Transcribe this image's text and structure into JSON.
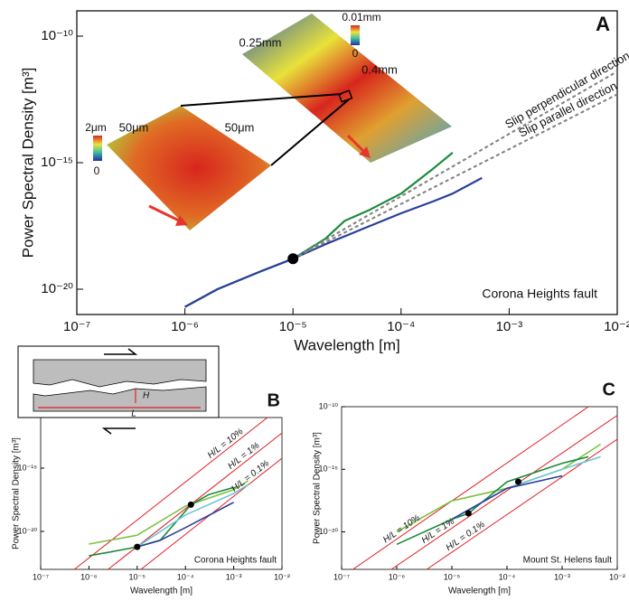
{
  "chart_data": [
    {
      "type": "line",
      "panel_label": "A",
      "log_scale": true,
      "xlabel": "Wavelength [m]",
      "ylabel": "Power Spectral Density [m³]",
      "xlim": [
        1e-07,
        0.01
      ],
      "ylim": [
        1e-21,
        1e-09
      ],
      "xticks": [
        {
          "value": 1e-07,
          "label": "10⁻⁷"
        },
        {
          "value": 1e-06,
          "label": "10⁻⁶"
        },
        {
          "value": 1e-05,
          "label": "10⁻⁵"
        },
        {
          "value": 0.0001,
          "label": "10⁻⁴"
        },
        {
          "value": 0.001,
          "label": "10⁻³"
        },
        {
          "value": 0.01,
          "label": "10⁻²"
        }
      ],
      "yticks": [
        {
          "value": 1e-10,
          "label": "10⁻¹⁰"
        },
        {
          "value": 1e-15,
          "label": "10⁻¹⁵"
        },
        {
          "value": 1e-20,
          "label": "10⁻²⁰"
        }
      ],
      "annotation": "Corona Heights fault",
      "inset_labels": [
        "0.01mm",
        "0",
        "0.25mm",
        "0.4mm",
        "2μm",
        "0",
        "50μm",
        "50μm"
      ],
      "series": [
        {
          "color": "#1b8a3c",
          "x": [
            1e-06,
            2e-06,
            5e-06,
            1e-05,
            2e-05,
            3e-05,
            5e-05,
            0.0001,
            0.0002,
            0.0003
          ],
          "values": [
            2e-21,
            1e-20,
            5e-20,
            1.6e-19,
            1e-18,
            5e-18,
            1.3e-17,
            6e-17,
            6e-16,
            2.5e-15
          ]
        },
        {
          "color": "#2b3f9b",
          "x": [
            1e-06,
            2e-06,
            5e-06,
            1e-05,
            2e-05,
            5e-05,
            0.0001,
            0.0002,
            0.0003,
            0.00056
          ],
          "values": [
            2e-21,
            1e-20,
            5e-20,
            1.6e-19,
            6e-19,
            3e-18,
            1e-17,
            3e-17,
            6e-17,
            2.5e-16
          ]
        },
        {
          "name": "Slip perpendicular direction",
          "color": "#808080",
          "dashed": true,
          "x": [
            1e-05,
            0.01
          ],
          "values": [
            1.6e-19,
            4e-12
          ]
        },
        {
          "name": "Slip parallel direction",
          "color": "#808080",
          "dashed": true,
          "x": [
            1e-05,
            0.01
          ],
          "values": [
            1.6e-19,
            5e-13
          ]
        }
      ],
      "points": {
        "x": [
          1e-05
        ],
        "y": [
          1.6e-19
        ],
        "color": "#000000"
      }
    },
    {
      "type": "line",
      "panel_label": "B",
      "log_scale": true,
      "xlabel": "Wavelength [m]",
      "ylabel": "Power Spectral Density [m³]",
      "xlim": [
        1e-07,
        0.01
      ],
      "ylim": [
        1e-23,
        1e-11
      ],
      "xticks": [
        {
          "value": 1e-07,
          "label": "10⁻⁷"
        },
        {
          "value": 1e-06,
          "label": "10⁻⁶"
        },
        {
          "value": 1e-05,
          "label": "10⁻⁵"
        },
        {
          "value": 0.0001,
          "label": "10⁻⁴"
        },
        {
          "value": 0.001,
          "label": "10⁻³"
        },
        {
          "value": 0.01,
          "label": "10⁻²"
        }
      ],
      "yticks": [
        {
          "value": 1e-15,
          "label": "10⁻¹⁵"
        },
        {
          "value": 1e-20,
          "label": "10⁻²⁰"
        }
      ],
      "annotation": "Corona Heights fault",
      "schematic_labels": [
        "H",
        "L"
      ],
      "series": [
        {
          "name": "H/L = 10%",
          "color": "#e31e24",
          "x": [
            5e-07,
            0.005
          ],
          "values": [
            1e-23,
            1e-11
          ]
        },
        {
          "name": "H/L = 1%",
          "color": "#e31e24",
          "x": [
            2.5e-06,
            0.01
          ],
          "values": [
            1e-23,
            6e-13
          ]
        },
        {
          "name": "H/L = 0.1%",
          "color": "#e31e24",
          "x": [
            1.2e-05,
            0.01
          ],
          "values": [
            1e-23,
            6e-15
          ]
        },
        {
          "color": "#7dc242",
          "x": [
            1e-06,
            1e-05,
            0.0001,
            0.001,
            0.002
          ],
          "values": [
            1e-21,
            5e-21,
            1e-18,
            2e-17,
            1e-16
          ]
        },
        {
          "color": "#1b8a3c",
          "x": [
            1e-06,
            3e-06,
            1e-05,
            3e-05,
            0.00013,
            0.0003,
            0.001
          ],
          "values": [
            1.2e-22,
            2.5e-22,
            6e-22,
            2e-21,
            1.3e-18,
            8e-18,
            3e-17
          ]
        },
        {
          "color": "#6cc7d9",
          "x": [
            1e-05,
            0.0001,
            0.001,
            0.002
          ],
          "values": [
            6e-22,
            2e-19,
            1e-17,
            5e-17
          ]
        },
        {
          "color": "#2b3f9b",
          "x": [
            1e-05,
            3e-05,
            0.0001,
            0.001
          ],
          "values": [
            6e-22,
            2e-21,
            2e-20,
            2e-18
          ]
        }
      ],
      "points": {
        "x": [
          1e-05,
          0.00013
        ],
        "y": [
          6e-22,
          1.3e-18
        ],
        "color": "#000000"
      }
    },
    {
      "type": "line",
      "panel_label": "C",
      "log_scale": true,
      "xlabel": "Wavelength [m]",
      "ylabel": "Power Spectral Density [m³]",
      "xlim": [
        1e-07,
        0.01
      ],
      "ylim": [
        1e-23,
        1e-10
      ],
      "xticks": [
        {
          "value": 1e-07,
          "label": "10⁻⁷"
        },
        {
          "value": 1e-06,
          "label": "10⁻⁶"
        },
        {
          "value": 1e-05,
          "label": "10⁻⁵"
        },
        {
          "value": 0.0001,
          "label": "10⁻⁴"
        },
        {
          "value": 0.001,
          "label": "10⁻³"
        },
        {
          "value": 0.01,
          "label": "10⁻²"
        }
      ],
      "yticks": [
        {
          "value": 1e-10,
          "label": "10⁻¹⁰"
        },
        {
          "value": 1e-15,
          "label": "10⁻¹⁵"
        },
        {
          "value": 1e-20,
          "label": "10⁻²⁰"
        }
      ],
      "annotation": "Mount St. Helens fault",
      "series": [
        {
          "name": "H/L = 10%",
          "color": "#e31e24",
          "x": [
            1.6e-07,
            0.003
          ],
          "values": [
            1e-23,
            1e-10
          ]
        },
        {
          "name": "H/L = 1%",
          "color": "#e31e24",
          "x": [
            8e-07,
            0.01
          ],
          "values": [
            1e-23,
            2e-11
          ]
        },
        {
          "name": "H/L = 0.1%",
          "color": "#e31e24",
          "x": [
            3.5e-06,
            0.01
          ],
          "values": [
            1e-23,
            2.5e-13
          ]
        },
        {
          "color": "#7dc242",
          "x": [
            1e-06,
            1e-05,
            0.0001,
            0.001,
            0.005
          ],
          "values": [
            1e-20,
            3e-18,
            3e-17,
            1e-15,
            1e-13
          ]
        },
        {
          "color": "#1b8a3c",
          "x": [
            1e-06,
            1e-05,
            2e-05,
            0.0001,
            0.001,
            0.003
          ],
          "values": [
            1e-21,
            1e-19,
            3e-19,
            1e-16,
            3e-15,
            1e-14
          ]
        },
        {
          "color": "#6cc7d9",
          "x": [
            1e-05,
            0.0001,
            0.001,
            0.005
          ],
          "values": [
            1e-19,
            3e-17,
            1e-15,
            1e-14
          ]
        },
        {
          "color": "#2b3f9b",
          "x": [
            1e-05,
            0.0001,
            0.001
          ],
          "values": [
            1e-19,
            3e-17,
            3e-16
          ]
        }
      ],
      "points": {
        "x": [
          2e-05,
          0.00016
        ],
        "y": [
          3e-19,
          1e-16
        ],
        "color": "#000000"
      }
    }
  ]
}
